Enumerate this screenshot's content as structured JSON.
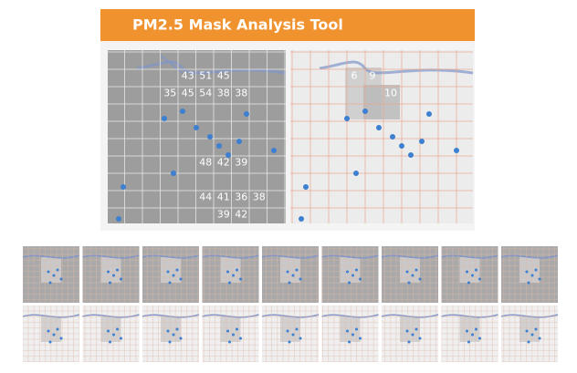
{
  "header": {
    "title": "PM2.5 Mask Analysis Tool"
  },
  "left_map": {
    "labels": [
      "43",
      "51",
      "45",
      "35",
      "45",
      "54",
      "38",
      "38",
      "48",
      "42",
      "39",
      "44",
      "41",
      "36",
      "38",
      "39",
      "42"
    ]
  },
  "right_map": {
    "labels": [
      "6",
      "9",
      "10"
    ]
  }
}
